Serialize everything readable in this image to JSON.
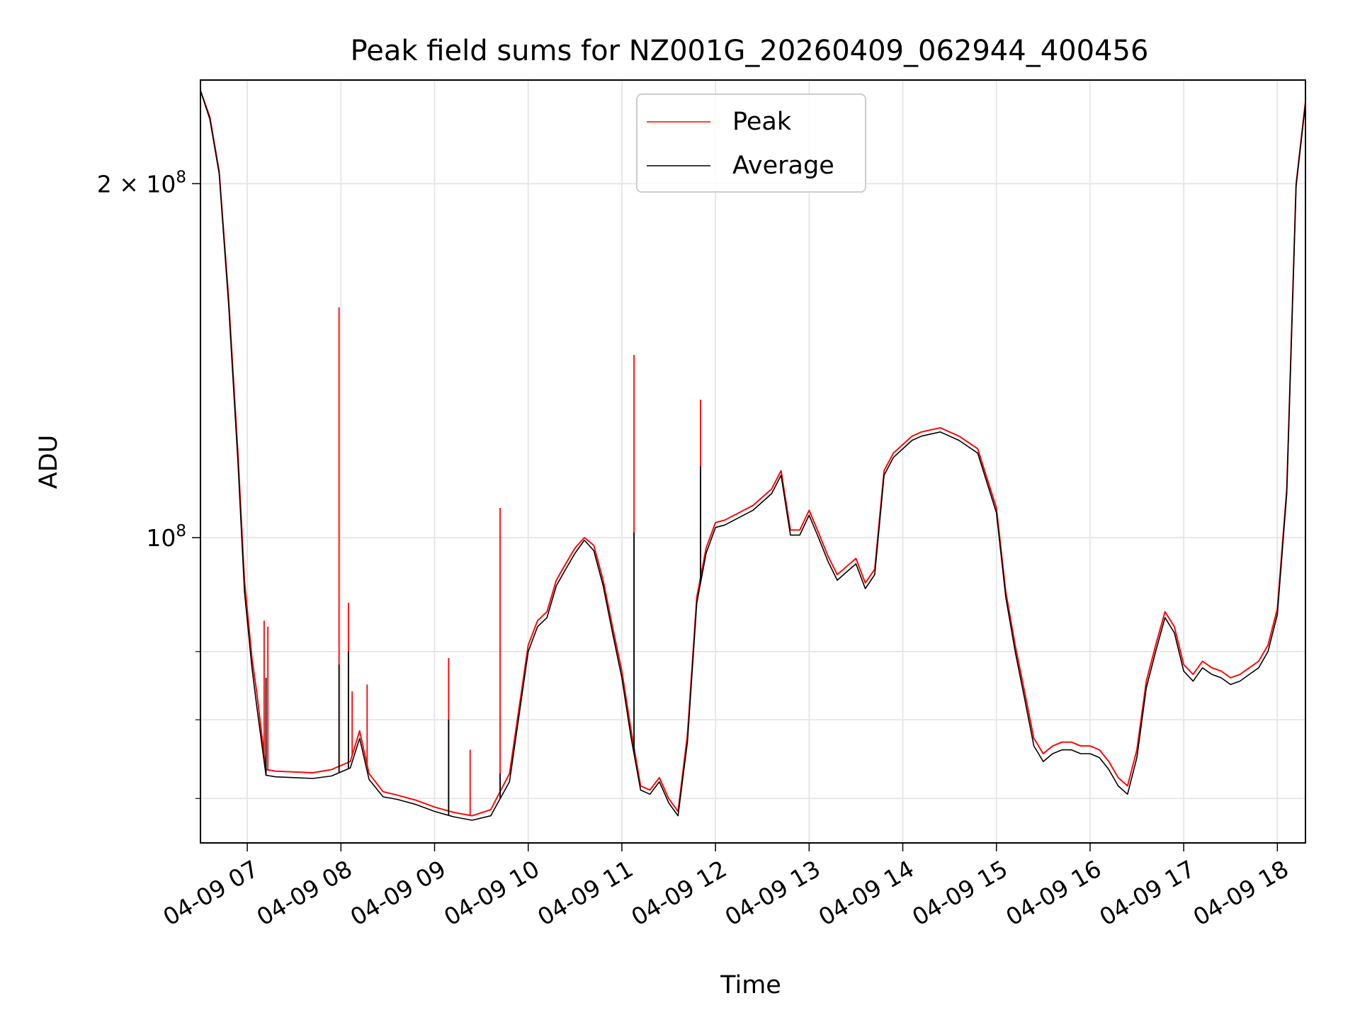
{
  "chart_data": {
    "type": "line",
    "title": "Peak field sums for NZ001G_20260409_062944_400456",
    "xlabel": "Time",
    "ylabel": "ADU",
    "yscale": "log",
    "ylim": [
      55000000,
      245000000
    ],
    "xlim": [
      6.5,
      18.3
    ],
    "grid": true,
    "legend_position": "upper center",
    "x_ticks": [
      {
        "value": 7,
        "label": "04-09 07"
      },
      {
        "value": 8,
        "label": "04-09 08"
      },
      {
        "value": 9,
        "label": "04-09 09"
      },
      {
        "value": 10,
        "label": "04-09 10"
      },
      {
        "value": 11,
        "label": "04-09 11"
      },
      {
        "value": 12,
        "label": "04-09 12"
      },
      {
        "value": 13,
        "label": "04-09 13"
      },
      {
        "value": 14,
        "label": "04-09 14"
      },
      {
        "value": 15,
        "label": "04-09 15"
      },
      {
        "value": 16,
        "label": "04-09 16"
      },
      {
        "value": 17,
        "label": "04-09 17"
      },
      {
        "value": 18,
        "label": "04-09 18"
      }
    ],
    "y_major_ticks": [
      {
        "value": 100000000,
        "base": "10",
        "exp": "8",
        "coef": ""
      },
      {
        "value": 200000000,
        "base": "10",
        "exp": "8",
        "coef": "2 × "
      }
    ],
    "y_minor_ticks": [
      60000000,
      70000000,
      80000000
    ],
    "x": [
      6.5,
      6.6,
      6.7,
      6.8,
      6.9,
      6.97,
      7.05,
      7.1,
      7.2,
      7.3,
      7.5,
      7.7,
      7.9,
      8.1,
      8.2,
      8.3,
      8.45,
      8.6,
      8.8,
      9.0,
      9.2,
      9.4,
      9.6,
      9.8,
      10.0,
      10.1,
      10.2,
      10.3,
      10.4,
      10.5,
      10.6,
      10.7,
      10.8,
      10.9,
      11.0,
      11.1,
      11.2,
      11.3,
      11.4,
      11.5,
      11.6,
      11.7,
      11.8,
      11.9,
      12.0,
      12.1,
      12.2,
      12.4,
      12.6,
      12.7,
      12.8,
      12.9,
      13.0,
      13.1,
      13.2,
      13.3,
      13.4,
      13.5,
      13.6,
      13.7,
      13.8,
      13.9,
      14.0,
      14.1,
      14.2,
      14.4,
      14.6,
      14.8,
      15.0,
      15.1,
      15.2,
      15.3,
      15.4,
      15.5,
      15.6,
      15.7,
      15.8,
      15.9,
      16.0,
      16.1,
      16.2,
      16.3,
      16.4,
      16.5,
      16.6,
      16.7,
      16.8,
      16.9,
      17.0,
      17.1,
      17.2,
      17.3,
      17.4,
      17.5,
      17.6,
      17.7,
      17.8,
      17.9,
      18.0,
      18.1,
      18.2,
      18.3
    ],
    "series": [
      {
        "name": "Peak",
        "color": "#ff0000",
        "width": 1.2,
        "values": [
          240000000,
          228000000,
          205000000,
          160000000,
          118000000,
          92000000,
          79000000,
          74000000,
          63500000,
          63300000,
          63200000,
          63100000,
          63500000,
          64500000,
          68500000,
          63000000,
          60800000,
          60400000,
          59800000,
          59000000,
          58400000,
          58000000,
          58700000,
          63000000,
          81000000,
          85000000,
          86500000,
          92000000,
          95000000,
          98000000,
          100000000,
          98500000,
          92000000,
          84000000,
          77000000,
          68500000,
          61500000,
          61000000,
          62500000,
          60000000,
          58500000,
          68000000,
          89000000,
          98000000,
          103000000,
          103500000,
          104500000,
          106500000,
          110000000,
          114000000,
          101500000,
          101500000,
          105500000,
          101000000,
          96500000,
          93000000,
          94500000,
          96000000,
          91500000,
          94000000,
          114000000,
          118000000,
          120000000,
          122000000,
          123000000,
          124000000,
          122000000,
          119000000,
          106000000,
          90000000,
          81000000,
          74000000,
          67500000,
          65500000,
          66500000,
          67000000,
          67000000,
          66500000,
          66500000,
          66000000,
          64500000,
          62500000,
          61500000,
          66000000,
          75500000,
          81000000,
          86500000,
          84000000,
          78000000,
          76500000,
          78500000,
          77500000,
          77000000,
          76000000,
          76500000,
          77500000,
          78500000,
          81000000,
          87000000,
          110000000,
          200000000,
          235000000
        ]
      },
      {
        "name": "Average",
        "color": "#000000",
        "width": 1.0,
        "values": [
          240000000,
          227000000,
          204000000,
          158000000,
          116000000,
          90000000,
          77500000,
          72000000,
          62800000,
          62600000,
          62500000,
          62400000,
          62700000,
          63700000,
          67500000,
          62300000,
          60200000,
          59900000,
          59300000,
          58500000,
          57900000,
          57500000,
          58000000,
          62000000,
          80000000,
          84000000,
          85500000,
          91000000,
          94000000,
          97000000,
          99500000,
          97500000,
          91000000,
          83000000,
          76000000,
          67500000,
          61000000,
          60500000,
          62000000,
          59500000,
          58000000,
          67000000,
          88000000,
          97000000,
          102000000,
          102500000,
          103500000,
          105500000,
          109000000,
          113000000,
          100500000,
          100500000,
          104500000,
          100000000,
          95500000,
          92000000,
          93500000,
          95000000,
          90500000,
          93000000,
          113000000,
          117000000,
          119000000,
          121000000,
          122000000,
          123000000,
          121000000,
          118000000,
          105000000,
          89000000,
          80000000,
          73000000,
          66500000,
          64500000,
          65500000,
          66000000,
          66000000,
          65500000,
          65500000,
          65000000,
          63500000,
          61500000,
          60500000,
          65000000,
          74500000,
          80000000,
          85500000,
          83000000,
          77000000,
          75500000,
          77500000,
          76500000,
          76000000,
          75000000,
          75500000,
          76500000,
          77500000,
          80000000,
          86000000,
          109000000,
          199000000,
          234000000
        ]
      }
    ],
    "peak_spikes": [
      {
        "x": 7.18,
        "value": 85000000
      },
      {
        "x": 7.22,
        "value": 84000000
      },
      {
        "x": 7.98,
        "value": 157000000
      },
      {
        "x": 8.08,
        "value": 88000000
      },
      {
        "x": 8.12,
        "value": 74000000
      },
      {
        "x": 8.28,
        "value": 75000000
      },
      {
        "x": 9.15,
        "value": 79000000
      },
      {
        "x": 9.38,
        "value": 66000000
      },
      {
        "x": 9.7,
        "value": 106000000
      },
      {
        "x": 11.13,
        "value": 143000000
      },
      {
        "x": 11.84,
        "value": 131000000
      }
    ],
    "avg_spikes": [
      {
        "x": 7.2,
        "value": 76000000
      },
      {
        "x": 7.98,
        "value": 78000000
      },
      {
        "x": 8.08,
        "value": 80000000
      },
      {
        "x": 9.15,
        "value": 70000000
      },
      {
        "x": 9.7,
        "value": 63000000
      },
      {
        "x": 11.13,
        "value": 101000000
      },
      {
        "x": 11.84,
        "value": 115000000
      }
    ]
  }
}
